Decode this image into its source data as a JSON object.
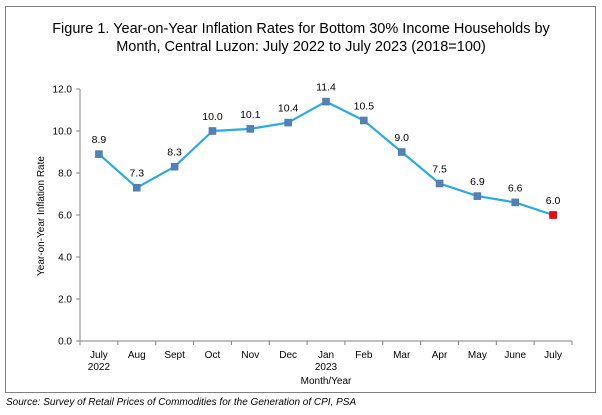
{
  "title": {
    "line1": "Figure 1.  Year-on-Year Inflation Rates for Bottom 30% Income Households by",
    "line2": "Month, Central Luzon: July 2022 to July 2023 (2018=100)"
  },
  "source": "Source: Survey of Retail Prices of Commodities for the Generation of CPI, PSA",
  "chart_data": {
    "type": "line",
    "title": "Figure 1.  Year-on-Year Inflation Rates for Bottom 30% Income Households by Month, Central Luzon: July 2022 to July 2023 (2018=100)",
    "xlabel": "Month/Year",
    "ylabel": "Year-on-Year Inflation Rate",
    "categories": [
      "July",
      "Aug",
      "Sept",
      "Oct",
      "Nov",
      "Dec",
      "Jan",
      "Feb",
      "Mar",
      "Apr",
      "May",
      "June",
      "July"
    ],
    "category_sublabels": [
      "2022",
      "",
      "",
      "",
      "",
      "",
      "2023",
      "",
      "",
      "",
      "",
      "",
      ""
    ],
    "values": [
      8.9,
      7.3,
      8.3,
      10.0,
      10.1,
      10.4,
      11.4,
      10.5,
      9.0,
      7.5,
      6.9,
      6.6,
      6.0
    ],
    "data_labels": [
      "8.9",
      "7.3",
      "8.3",
      "10.0",
      "10.1",
      "10.4",
      "11.4",
      "10.5",
      "9.0",
      "7.5",
      "6.9",
      "6.6",
      "6.0"
    ],
    "ylim": [
      0,
      12
    ],
    "yticks": [
      "0.0",
      "2.0",
      "4.0",
      "6.0",
      "8.0",
      "10.0",
      "12.0"
    ],
    "grid": false,
    "legend": "none",
    "colors": {
      "line": "#29abe2",
      "marker": "#4f81bd",
      "marker_edge": "#5a7a8c",
      "last_marker": "#ff0000",
      "axis": "#808080"
    }
  }
}
